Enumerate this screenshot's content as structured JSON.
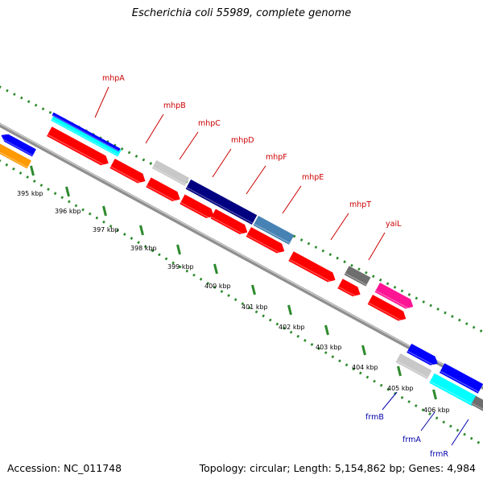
{
  "title": "Escherichia coli 55989, complete genome",
  "footer": {
    "accession": "Accession: NC_011748",
    "summary": "Topology: circular; Length: 5,154,862 bp; Genes: 4,984"
  },
  "colors": {
    "background": "#ffffff",
    "backbone": "#8f8f8f",
    "backbone_light": "#d4d4d4",
    "grid_dots": "#2d8a2d",
    "forward_label": "#cc0000",
    "reverse_label": "#0000aa"
  },
  "ticks": [
    "395 kbp",
    "396 kbp",
    "397 kbp",
    "398 kbp",
    "399 kbp",
    "400 kbp",
    "401 kbp",
    "402 kbp",
    "403 kbp",
    "404 kbp",
    "405 kbp",
    "406 kbp"
  ],
  "gene_labels_forward": [
    "mhpA",
    "mhpB",
    "mhpC",
    "mhpD",
    "mhpF",
    "mhpE",
    "mhpT",
    "yaiL"
  ],
  "gene_labels_reverse": [
    "frmB",
    "frmA",
    "frmR"
  ],
  "feature_colors": {
    "red": "#ff0000",
    "cyan": "#00ffff",
    "blue": "#0000ff",
    "orange": "#ff9900",
    "light_gray": "#c8c8c8",
    "dark_gray": "#6e6e6e",
    "navy": "#000080",
    "steel_blue": "#4682b4",
    "magenta": "#ff1493"
  }
}
